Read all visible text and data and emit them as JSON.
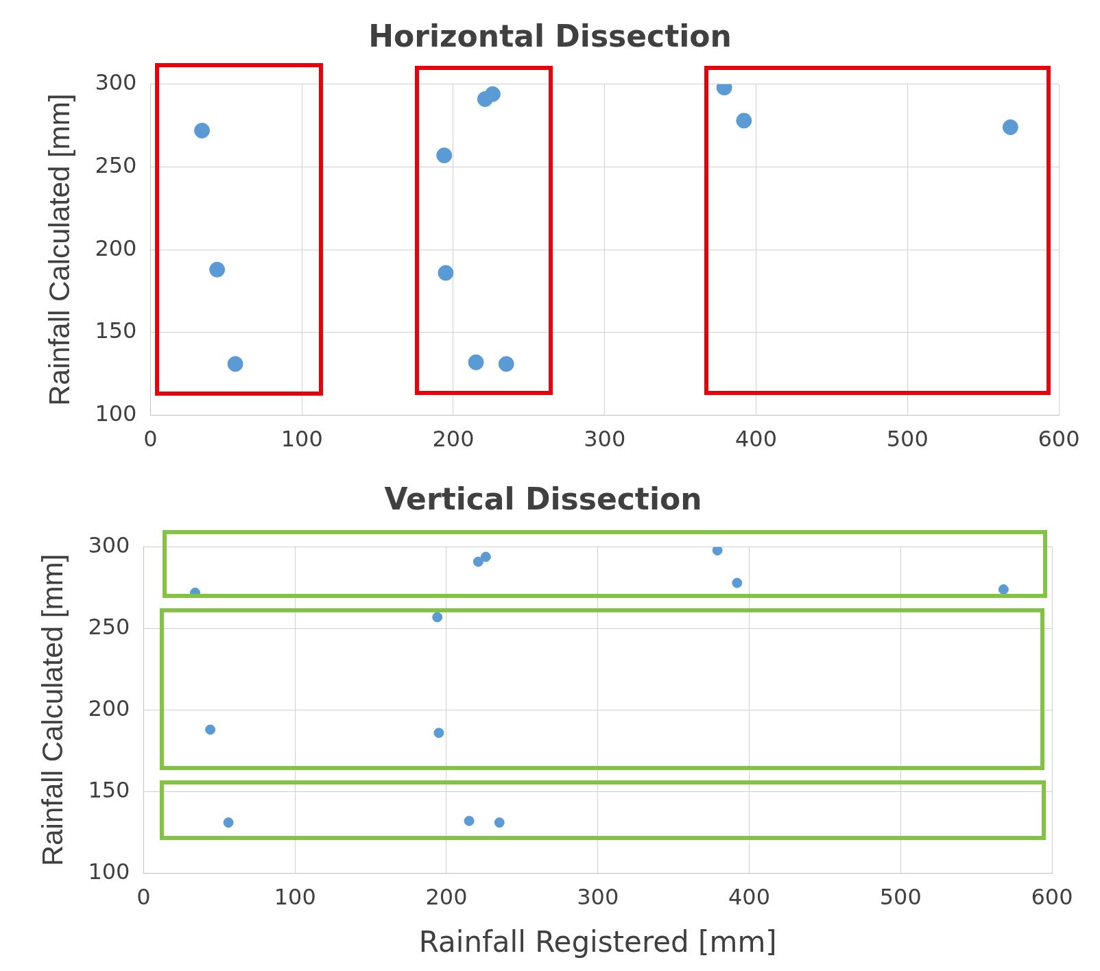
{
  "chart_data": [
    {
      "type": "scatter",
      "title": "Horizontal Dissection",
      "ylabel": "Rainfall Calculated [mm]",
      "xlim": [
        0,
        600
      ],
      "xticks": [
        0,
        100,
        200,
        300,
        400,
        500,
        600
      ],
      "ylim": [
        100,
        300
      ],
      "yticks": [
        100,
        150,
        200,
        250,
        300
      ],
      "grid": true,
      "marker": "circle",
      "legend": false,
      "series": [
        {
          "color": "#5b9bd5",
          "x": [
            34,
            44,
            56,
            194,
            195,
            215,
            235,
            221,
            226,
            379,
            392,
            568
          ],
          "values": [
            272,
            188,
            131,
            257,
            186,
            132,
            131,
            291,
            294,
            298,
            278,
            274
          ]
        }
      ]
    },
    {
      "type": "scatter",
      "title": "Vertical Dissection",
      "xlabel": "Rainfall Registered [mm]",
      "ylabel": "Rainfall Calculated [mm]",
      "xlim": [
        0,
        600
      ],
      "xticks": [
        0,
        100,
        200,
        300,
        400,
        500,
        600
      ],
      "ylim": [
        100,
        300
      ],
      "yticks": [
        100,
        150,
        200,
        250,
        300
      ],
      "grid": true,
      "marker": "circle",
      "legend": false,
      "series": [
        {
          "color": "#5b9bd5",
          "x": [
            34,
            44,
            56,
            194,
            195,
            215,
            235,
            221,
            226,
            379,
            392,
            568
          ],
          "values": [
            272,
            188,
            131,
            257,
            186,
            132,
            131,
            291,
            294,
            298,
            278,
            274
          ]
        }
      ]
    }
  ]
}
